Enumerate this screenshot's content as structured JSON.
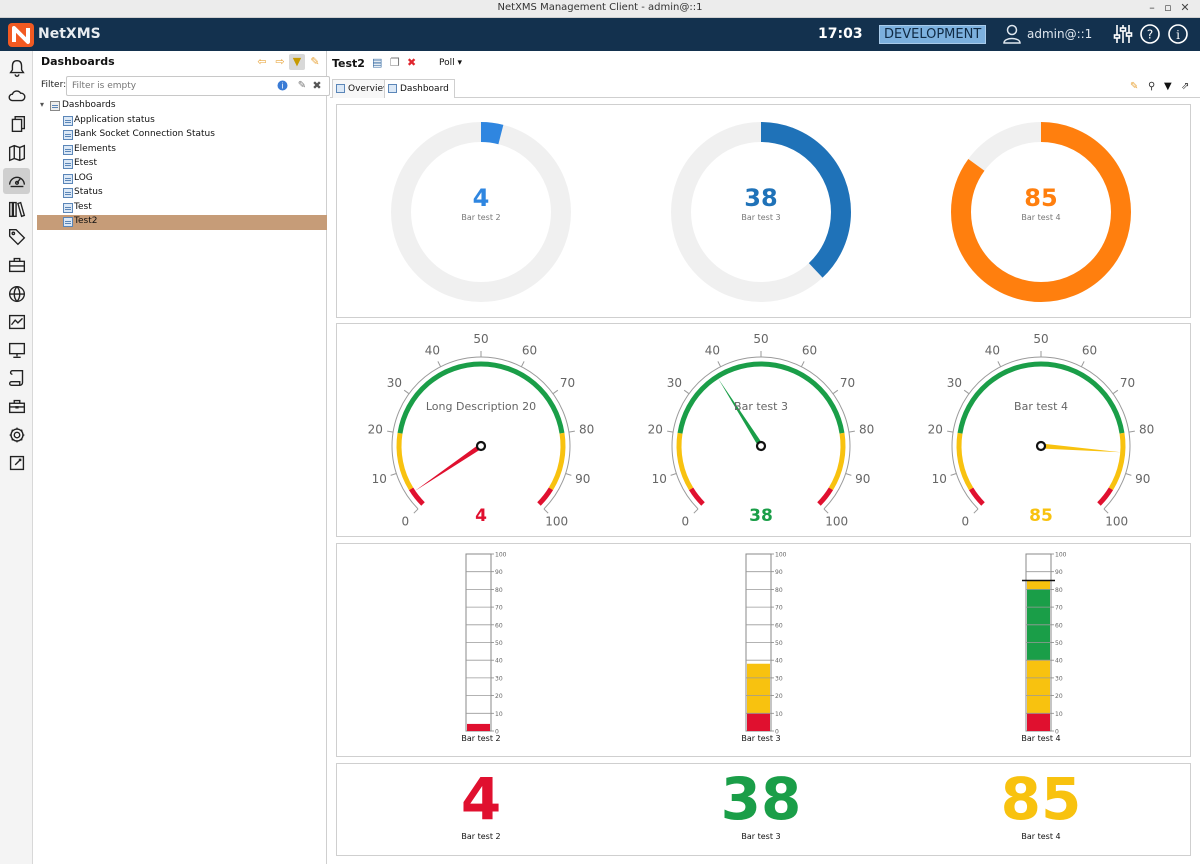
{
  "window": {
    "title": "NetXMS Management Client - admin@::1"
  },
  "header": {
    "app_name": "NetXMS",
    "clock": "17:03",
    "environment": "DEVELOPMENT",
    "user": "admin@::1"
  },
  "sidebar": {
    "icons": [
      "bell-icon",
      "cloud-icon",
      "documents-icon",
      "map-icon",
      "dashboard-icon",
      "library-icon",
      "tags-icon",
      "briefcase-icon",
      "globe-icon",
      "chart-icon",
      "monitor-icon",
      "script-icon",
      "toolbox-icon",
      "gear-icon",
      "tools-icon"
    ],
    "active_index": 4
  },
  "nav": {
    "title": "Dashboards",
    "filter_label": "Filter:",
    "filter_placeholder": "Filter is empty",
    "root": "Dashboards",
    "items": [
      "Application status",
      "Bank Socket Connection Status",
      "Elements",
      "Etest",
      "LOG",
      "Status",
      "Test",
      "Test2"
    ],
    "selected": "Test2"
  },
  "main": {
    "object_title": "Test2",
    "poll_label": "Poll ▾",
    "tabs": [
      {
        "label": "Overview"
      },
      {
        "label": "Dashboard"
      }
    ],
    "active_tab": "Dashboard"
  },
  "colors": {
    "red": "#e0102f",
    "yellow": "#f8c20f",
    "green": "#1a9e48",
    "blue_light": "#2f86e0",
    "blue": "#1f72b8",
    "orange": "#ff7f0e",
    "track": "#f0f0f0"
  },
  "dashboard": {
    "scale": {
      "min": 0,
      "max": 100,
      "ticks": [
        "0",
        "10",
        "20",
        "30",
        "40",
        "50",
        "60",
        "70",
        "80",
        "90",
        "100"
      ]
    },
    "rings": [
      {
        "value": "4",
        "label": "Bar test 2",
        "percent": 4,
        "color": "#2f86e0"
      },
      {
        "value": "38",
        "label": "Bar test 3",
        "percent": 38,
        "color": "#1f72b8"
      },
      {
        "value": "85",
        "label": "Bar test 4",
        "percent": 85,
        "color": "#ff7f0e"
      }
    ],
    "dials": [
      {
        "value": "4",
        "label": "Long Description 20",
        "percent": 4,
        "color": "#e0102f"
      },
      {
        "value": "38",
        "label": "Bar test 3",
        "percent": 38,
        "color": "#1a9e48"
      },
      {
        "value": "85",
        "label": "Bar test 4",
        "percent": 85,
        "color": "#f8c20f"
      }
    ],
    "bars": [
      {
        "label": "Bar test 2",
        "percent": 4
      },
      {
        "label": "Bar test 3",
        "percent": 38
      },
      {
        "label": "Bar test 4",
        "percent": 85
      }
    ],
    "numbers": [
      {
        "value": "4",
        "label": "Bar test 2",
        "color": "#e0102f"
      },
      {
        "value": "38",
        "label": "Bar test 3",
        "color": "#1a9e48"
      },
      {
        "value": "85",
        "label": "Bar test 4",
        "color": "#f8c20f"
      }
    ]
  }
}
